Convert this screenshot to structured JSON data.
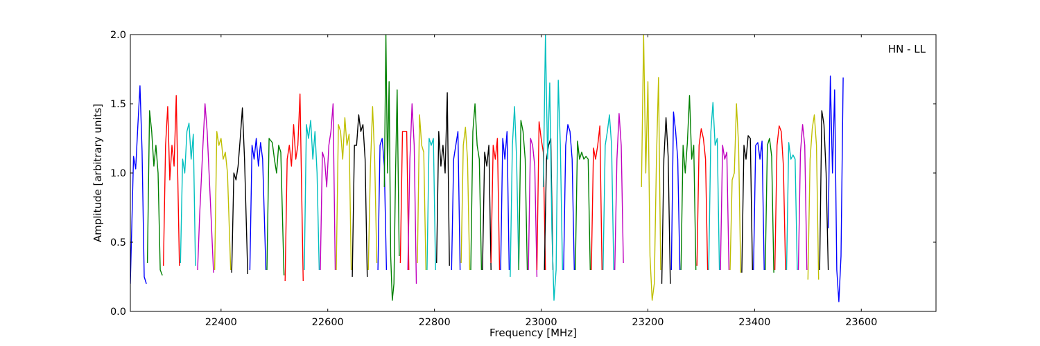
{
  "chart_data": {
    "type": "line",
    "title": "",
    "annotation": "HN - LL",
    "xlabel": "Frequency [MHz]",
    "ylabel": "Amplitude [arbitrary units]",
    "xlim": [
      22230,
      23740
    ],
    "ylim": [
      0.0,
      2.0
    ],
    "xticks": [
      22400,
      22600,
      22800,
      23000,
      23200,
      23400,
      23600
    ],
    "xtick_labels": [
      "22400",
      "22600",
      "22800",
      "23000",
      "23200",
      "23400",
      "23600"
    ],
    "yticks": [
      0.0,
      0.5,
      1.0,
      1.5,
      2.0
    ],
    "ytick_labels": [
      "0.0",
      "0.5",
      "1.0",
      "1.5",
      "2.0"
    ],
    "grid": false,
    "legend": "none",
    "palette": [
      "#0000ff",
      "#008000",
      "#ff0000",
      "#00bfbf",
      "#bf00bf",
      "#bfbf00",
      "#000000"
    ],
    "series": [
      {
        "color": "#0000ff",
        "x": [
          22230,
          22236,
          22240,
          22244,
          22248,
          22252,
          22256,
          22260
        ],
        "y": [
          0.2,
          1.12,
          1.03,
          1.34,
          1.63,
          1.16,
          0.25,
          0.2
        ]
      },
      {
        "color": "#008000",
        "x": [
          22262,
          22266,
          22270,
          22274,
          22278,
          22282,
          22286,
          22290
        ],
        "y": [
          0.35,
          1.45,
          1.3,
          1.05,
          1.2,
          1.0,
          0.3,
          0.26
        ]
      },
      {
        "color": "#ff0000",
        "x": [
          22292,
          22296,
          22300,
          22304,
          22308,
          22312,
          22316,
          22322
        ],
        "y": [
          0.33,
          1.2,
          1.48,
          0.95,
          1.2,
          1.05,
          1.56,
          0.33
        ]
      },
      {
        "color": "#00bfbf",
        "x": [
          22324,
          22328,
          22332,
          22336,
          22340,
          22344,
          22348,
          22352
        ],
        "y": [
          0.35,
          1.1,
          1.0,
          1.3,
          1.36,
          1.1,
          1.28,
          0.33
        ]
      },
      {
        "color": "#bf00bf",
        "x": [
          22356,
          22360,
          22366,
          22370,
          22374,
          22380,
          22386
        ],
        "y": [
          0.3,
          0.7,
          1.2,
          1.5,
          1.3,
          0.8,
          0.28
        ]
      },
      {
        "color": "#bfbf00",
        "x": [
          22388,
          22392,
          22396,
          22400,
          22404,
          22408,
          22412,
          22418
        ],
        "y": [
          0.3,
          1.3,
          1.2,
          1.25,
          1.1,
          1.15,
          1.0,
          0.3
        ]
      },
      {
        "color": "#000000",
        "x": [
          22420,
          22424,
          22428,
          22432,
          22436,
          22440,
          22444,
          22450
        ],
        "y": [
          0.28,
          1.0,
          0.95,
          1.05,
          1.25,
          1.47,
          1.1,
          0.27
        ]
      },
      {
        "color": "#0000ff",
        "x": [
          22454,
          22458,
          22462,
          22466,
          22470,
          22474,
          22478,
          22484
        ],
        "y": [
          0.3,
          1.2,
          1.1,
          1.25,
          1.05,
          1.22,
          1.1,
          0.3
        ]
      },
      {
        "color": "#008000",
        "x": [
          22486,
          22490,
          22496,
          22500,
          22504,
          22508,
          22512,
          22518
        ],
        "y": [
          0.3,
          1.25,
          1.22,
          1.1,
          1.0,
          1.2,
          1.15,
          0.26
        ]
      },
      {
        "color": "#ff0000",
        "x": [
          22520,
          22524,
          22528,
          22532,
          22536,
          22540,
          22544,
          22548,
          22554
        ],
        "y": [
          0.22,
          1.1,
          1.2,
          1.05,
          1.35,
          1.1,
          1.2,
          1.57,
          0.22
        ]
      },
      {
        "color": "#00bfbf",
        "x": [
          22556,
          22560,
          22564,
          22568,
          22572,
          22576,
          22580,
          22584
        ],
        "y": [
          0.3,
          1.35,
          1.25,
          1.38,
          1.1,
          1.3,
          1.0,
          0.3
        ]
      },
      {
        "color": "#bf00bf",
        "x": [
          22586,
          22590,
          22594,
          22598,
          22602,
          22606,
          22610,
          22614
        ],
        "y": [
          0.3,
          1.15,
          1.1,
          0.9,
          1.2,
          1.3,
          1.5,
          0.3
        ]
      },
      {
        "color": "#bfbf00",
        "x": [
          22616,
          22620,
          22624,
          22628,
          22632,
          22636,
          22640,
          22644
        ],
        "y": [
          0.3,
          1.35,
          1.3,
          1.1,
          1.4,
          1.2,
          1.28,
          0.3
        ]
      },
      {
        "color": "#000000",
        "x": [
          22646,
          22650,
          22654,
          22658,
          22662,
          22666,
          22670,
          22674
        ],
        "y": [
          0.25,
          1.2,
          1.2,
          1.42,
          1.3,
          1.35,
          1.1,
          0.25
        ]
      },
      {
        "color": "#bfbf00",
        "x": [
          22676,
          22680,
          22684,
          22688,
          22692
        ],
        "y": [
          0.3,
          1.05,
          1.48,
          1.1,
          0.35
        ]
      },
      {
        "color": "#0000ff",
        "x": [
          22694,
          22698,
          22702,
          22706,
          22710
        ],
        "y": [
          0.3,
          1.2,
          1.25,
          1.05,
          0.3
        ]
      },
      {
        "color": "#008000",
        "x": [
          22706,
          22709,
          22712,
          22715,
          22718,
          22721,
          22724,
          22727,
          22730,
          22734
        ],
        "y": [
          0.9,
          2.0,
          1.0,
          1.66,
          0.4,
          0.08,
          0.2,
          1.0,
          1.6,
          0.4
        ]
      },
      {
        "color": "#ff0000",
        "x": [
          22736,
          22740,
          22744,
          22748,
          22752
        ],
        "y": [
          0.35,
          1.3,
          1.3,
          1.3,
          0.3
        ]
      },
      {
        "color": "#bf00bf",
        "x": [
          22750,
          22754,
          22758,
          22762,
          22766
        ],
        "y": [
          0.3,
          1.1,
          1.5,
          1.2,
          0.2
        ]
      },
      {
        "color": "#bfbf00",
        "x": [
          22768,
          22772,
          22776,
          22780,
          22784
        ],
        "y": [
          0.35,
          1.42,
          1.2,
          1.15,
          0.3
        ]
      },
      {
        "color": "#00bfbf",
        "x": [
          22786,
          22790,
          22794,
          22798,
          22802
        ],
        "y": [
          0.3,
          1.25,
          1.2,
          1.25,
          0.3
        ]
      },
      {
        "color": "#000000",
        "x": [
          22804,
          22808,
          22812,
          22816,
          22820,
          22824,
          22828
        ],
        "y": [
          0.35,
          1.3,
          1.05,
          1.2,
          1.0,
          1.58,
          0.33
        ]
      },
      {
        "color": "#0000ff",
        "x": [
          22832,
          22836,
          22840,
          22844,
          22848
        ],
        "y": [
          0.3,
          1.1,
          1.2,
          1.3,
          0.3
        ]
      },
      {
        "color": "#bfbf00",
        "x": [
          22850,
          22854,
          22858,
          22862,
          22866
        ],
        "y": [
          0.35,
          1.2,
          1.33,
          1.1,
          0.3
        ]
      },
      {
        "color": "#008000",
        "x": [
          22868,
          22872,
          22876,
          22880,
          22884,
          22888
        ],
        "y": [
          0.3,
          1.3,
          1.5,
          1.2,
          1.1,
          0.3
        ]
      },
      {
        "color": "#000000",
        "x": [
          22890,
          22894,
          22898,
          22902,
          22906
        ],
        "y": [
          0.3,
          1.15,
          1.05,
          1.2,
          0.3
        ]
      },
      {
        "color": "#ff0000",
        "x": [
          22906,
          22910,
          22914,
          22918,
          22922
        ],
        "y": [
          0.35,
          1.2,
          1.1,
          1.25,
          0.3
        ]
      },
      {
        "color": "#0000ff",
        "x": [
          22924,
          22928,
          22932,
          22936,
          22940
        ],
        "y": [
          0.3,
          1.25,
          1.1,
          1.3,
          0.3
        ]
      },
      {
        "color": "#00bfbf",
        "x": [
          22942,
          22946,
          22950,
          22954,
          22958
        ],
        "y": [
          0.25,
          1.2,
          1.48,
          1.1,
          0.3
        ]
      },
      {
        "color": "#008000",
        "x": [
          22958,
          22962,
          22966,
          22970,
          22974
        ],
        "y": [
          0.3,
          1.38,
          1.3,
          1.1,
          0.3
        ]
      },
      {
        "color": "#bf00bf",
        "x": [
          22976,
          22980,
          22984,
          22988,
          22992
        ],
        "y": [
          0.3,
          1.25,
          1.2,
          1.05,
          0.25
        ]
      },
      {
        "color": "#ff0000",
        "x": [
          22992,
          22996,
          23000,
          23004,
          23008
        ],
        "y": [
          0.3,
          1.37,
          1.25,
          1.15,
          0.3
        ]
      },
      {
        "color": "#000000",
        "x": [
          23006,
          23010,
          23014,
          23018,
          23022
        ],
        "y": [
          0.3,
          1.1,
          1.2,
          1.25,
          0.3
        ]
      },
      {
        "color": "#00bfbf",
        "x": [
          23004,
          23008,
          23012,
          23016,
          23020,
          23024,
          23028,
          23032,
          23036,
          23040
        ],
        "y": [
          0.9,
          2.0,
          1.1,
          1.65,
          0.6,
          0.08,
          0.3,
          1.67,
          1.2,
          0.3
        ]
      },
      {
        "color": "#0000ff",
        "x": [
          23042,
          23046,
          23050,
          23054,
          23058,
          23062
        ],
        "y": [
          0.3,
          1.2,
          1.35,
          1.3,
          1.1,
          0.3
        ]
      },
      {
        "color": "#008000",
        "x": [
          23064,
          23068,
          23072,
          23076,
          23080,
          23084,
          23088,
          23092
        ],
        "y": [
          0.3,
          1.23,
          1.1,
          1.15,
          1.1,
          1.12,
          1.1,
          0.3
        ]
      },
      {
        "color": "#ff0000",
        "x": [
          23094,
          23098,
          23102,
          23106,
          23110,
          23114
        ],
        "y": [
          0.3,
          1.18,
          1.1,
          1.2,
          1.34,
          0.3
        ]
      },
      {
        "color": "#00bfbf",
        "x": [
          23116,
          23120,
          23124,
          23128,
          23132,
          23136
        ],
        "y": [
          0.3,
          1.2,
          1.3,
          1.42,
          1.2,
          0.3
        ]
      },
      {
        "color": "#bf00bf",
        "x": [
          23138,
          23142,
          23146,
          23150,
          23154
        ],
        "y": [
          0.3,
          1.1,
          1.43,
          1.2,
          0.35
        ]
      },
      {
        "color": "#bfbf00",
        "x": [
          23188,
          23192,
          23196,
          23200,
          23204,
          23208,
          23212,
          23216,
          23220,
          23224
        ],
        "y": [
          0.9,
          2.0,
          1.0,
          1.66,
          0.4,
          0.08,
          0.2,
          1.1,
          1.69,
          0.3
        ]
      },
      {
        "color": "#000000",
        "x": [
          23226,
          23230,
          23234,
          23238,
          23242
        ],
        "y": [
          0.2,
          1.1,
          1.4,
          1.12,
          0.2
        ]
      },
      {
        "color": "#0000ff",
        "x": [
          23244,
          23248,
          23252,
          23256,
          23260
        ],
        "y": [
          0.3,
          1.44,
          1.3,
          1.1,
          0.3
        ]
      },
      {
        "color": "#008000",
        "x": [
          23262,
          23266,
          23270,
          23274,
          23278,
          23282,
          23286,
          23290
        ],
        "y": [
          0.3,
          1.2,
          1.0,
          1.22,
          1.56,
          1.1,
          1.2,
          0.3
        ]
      },
      {
        "color": "#ff0000",
        "x": [
          23292,
          23296,
          23300,
          23304,
          23308,
          23312
        ],
        "y": [
          0.33,
          1.2,
          1.32,
          1.25,
          1.1,
          0.3
        ]
      },
      {
        "color": "#00bfbf",
        "x": [
          23314,
          23318,
          23322,
          23326,
          23330,
          23334
        ],
        "y": [
          0.3,
          1.3,
          1.51,
          1.2,
          1.25,
          0.3
        ]
      },
      {
        "color": "#bf00bf",
        "x": [
          23336,
          23340,
          23344,
          23348,
          23352
        ],
        "y": [
          0.3,
          1.2,
          1.1,
          1.15,
          0.3
        ]
      },
      {
        "color": "#bfbf00",
        "x": [
          23354,
          23358,
          23362,
          23366,
          23370,
          23374
        ],
        "y": [
          0.3,
          0.95,
          1.0,
          1.5,
          1.2,
          0.28
        ]
      },
      {
        "color": "#000000",
        "x": [
          23376,
          23380,
          23384,
          23388,
          23392,
          23396
        ],
        "y": [
          0.28,
          1.2,
          1.1,
          1.27,
          1.25,
          0.3
        ]
      },
      {
        "color": "#0000ff",
        "x": [
          23398,
          23402,
          23406,
          23410,
          23414,
          23418
        ],
        "y": [
          0.3,
          1.2,
          1.22,
          1.1,
          1.23,
          0.3
        ]
      },
      {
        "color": "#008000",
        "x": [
          23420,
          23424,
          23428,
          23432,
          23436
        ],
        "y": [
          0.3,
          1.2,
          1.25,
          1.12,
          0.28
        ]
      },
      {
        "color": "#ff0000",
        "x": [
          23438,
          23442,
          23446,
          23450,
          23454,
          23458
        ],
        "y": [
          0.3,
          1.2,
          1.34,
          1.3,
          1.05,
          0.3
        ]
      },
      {
        "color": "#00bfbf",
        "x": [
          23460,
          23464,
          23468,
          23472,
          23476,
          23480
        ],
        "y": [
          0.3,
          1.22,
          1.1,
          1.13,
          1.1,
          0.3
        ]
      },
      {
        "color": "#bf00bf",
        "x": [
          23482,
          23486,
          23490,
          23494,
          23498
        ],
        "y": [
          0.3,
          1.15,
          1.35,
          1.2,
          0.3
        ]
      },
      {
        "color": "#bfbf00",
        "x": [
          23500,
          23504,
          23508,
          23512,
          23516,
          23520
        ],
        "y": [
          0.23,
          1.1,
          1.32,
          1.42,
          1.2,
          0.23
        ]
      },
      {
        "color": "#000000",
        "x": [
          23522,
          23526,
          23530,
          23534,
          23538
        ],
        "y": [
          0.3,
          1.45,
          1.35,
          1.0,
          0.3
        ]
      },
      {
        "color": "#0000ff",
        "x": [
          23538,
          23542,
          23546,
          23550,
          23554,
          23558,
          23562,
          23566
        ],
        "y": [
          0.6,
          1.7,
          1.0,
          1.6,
          0.3,
          0.07,
          0.4,
          1.69
        ]
      }
    ]
  }
}
